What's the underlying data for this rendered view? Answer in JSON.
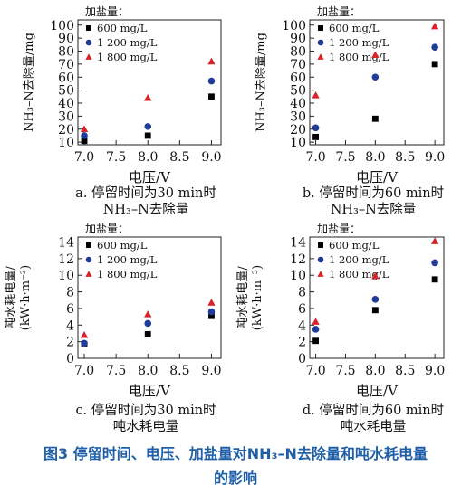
{
  "figure": {
    "number": "图3",
    "title_line1": "停留时间、电压、加盐量对NH₃–N去除量和吨水耗电量",
    "title_line2": "的影响"
  },
  "chart_data": [
    {
      "type": "scatter",
      "xlabel": "电压/V",
      "ylabel": "NH₃–N去除量/mg",
      "legend_title": "加盐量：",
      "caption_line1": "a. 停留时间为30 min时",
      "caption_line2": "NH₃–N去除量",
      "x_ticks": [
        "7.0",
        "7.5",
        "8.0",
        "8.5",
        "9.0"
      ],
      "y_ticks": [
        "10",
        "20",
        "30",
        "40",
        "50",
        "60",
        "70",
        "80",
        "90",
        "100"
      ],
      "xlim": [
        6.9,
        9.15
      ],
      "ylim": [
        8,
        104
      ],
      "series": [
        {
          "name": "600 mg/L",
          "marker": "square",
          "color": "#000000",
          "x": [
            7.0,
            8.0,
            9.0
          ],
          "y": [
            11,
            15,
            45
          ]
        },
        {
          "name": "1 200 mg/L",
          "marker": "circle",
          "color": "#1f3c99",
          "x": [
            7.0,
            8.0,
            9.0
          ],
          "y": [
            15,
            22,
            57
          ]
        },
        {
          "name": "1 800 mg/L",
          "marker": "triangle",
          "color": "#d9232a",
          "x": [
            7.0,
            8.0,
            9.0
          ],
          "y": [
            20,
            44,
            72
          ]
        }
      ]
    },
    {
      "type": "scatter",
      "xlabel": "电压/V",
      "ylabel": "NH₃–N去除量/mg",
      "legend_title": "加盐量：",
      "caption_line1": "b. 停留时间为60 min时",
      "caption_line2": "NH₃–N去除量",
      "x_ticks": [
        "7.0",
        "7.5",
        "8.0",
        "8.5",
        "9.0"
      ],
      "y_ticks": [
        "10",
        "20",
        "30",
        "40",
        "50",
        "60",
        "70",
        "80",
        "90",
        "100"
      ],
      "xlim": [
        6.9,
        9.15
      ],
      "ylim": [
        8,
        104
      ],
      "series": [
        {
          "name": "600 mg/L",
          "marker": "square",
          "color": "#000000",
          "x": [
            7.0,
            8.0,
            9.0
          ],
          "y": [
            14,
            28,
            70
          ]
        },
        {
          "name": "1 200 mg/L",
          "marker": "circle",
          "color": "#1f3c99",
          "x": [
            7.0,
            8.0,
            9.0
          ],
          "y": [
            21,
            60,
            83
          ]
        },
        {
          "name": "1 800 mg/L",
          "marker": "triangle",
          "color": "#d9232a",
          "x": [
            7.0,
            8.0,
            9.0
          ],
          "y": [
            46,
            77,
            99
          ]
        }
      ]
    },
    {
      "type": "scatter",
      "xlabel": "电压/V",
      "ylabel_line1": "吨水耗电量/",
      "ylabel_line2": "(kW·h·m⁻³)",
      "legend_title": "加盐量：",
      "caption_line1": "c. 停留时间为30 min时",
      "caption_line2": "吨水耗电量",
      "x_ticks": [
        "7.0",
        "7.5",
        "8.0",
        "8.5",
        "9.0"
      ],
      "y_ticks": [
        "0",
        "2",
        "4",
        "6",
        "8",
        "10",
        "12",
        "14"
      ],
      "xlim": [
        6.9,
        9.15
      ],
      "ylim": [
        0,
        14.6
      ],
      "series": [
        {
          "name": "600 mg/L",
          "marker": "square",
          "color": "#000000",
          "x": [
            7.0,
            8.0,
            9.0
          ],
          "y": [
            1.7,
            2.9,
            5.1
          ]
        },
        {
          "name": "1 200 mg/L",
          "marker": "circle",
          "color": "#1f3c99",
          "x": [
            7.0,
            8.0,
            9.0
          ],
          "y": [
            1.8,
            4.2,
            5.6
          ]
        },
        {
          "name": "1 800 mg/L",
          "marker": "triangle",
          "color": "#d9232a",
          "x": [
            7.0,
            8.0,
            9.0
          ],
          "y": [
            2.8,
            5.3,
            6.7
          ]
        }
      ]
    },
    {
      "type": "scatter",
      "xlabel": "电压/V",
      "ylabel_line1": "吨水耗电量/",
      "ylabel_line2": "(kW·h·m⁻³)",
      "legend_title": "加盐量：",
      "caption_line1": "d. 停留时间为60 min时",
      "caption_line2": "吨水耗电量",
      "x_ticks": [
        "7.0",
        "7.5",
        "8.0",
        "8.5",
        "9.0"
      ],
      "y_ticks": [
        "0",
        "2",
        "4",
        "6",
        "8",
        "10",
        "12",
        "14"
      ],
      "xlim": [
        6.9,
        9.15
      ],
      "ylim": [
        0,
        14.6
      ],
      "series": [
        {
          "name": "600 mg/L",
          "marker": "square",
          "color": "#000000",
          "x": [
            7.0,
            8.0,
            9.0
          ],
          "y": [
            2.1,
            5.8,
            9.5
          ]
        },
        {
          "name": "1 200 mg/L",
          "marker": "circle",
          "color": "#1f3c99",
          "x": [
            7.0,
            8.0,
            9.0
          ],
          "y": [
            3.5,
            7.1,
            11.5
          ]
        },
        {
          "name": "1 800 mg/L",
          "marker": "triangle",
          "color": "#d9232a",
          "x": [
            7.0,
            8.0,
            9.0
          ],
          "y": [
            4.4,
            9.9,
            14.1
          ]
        }
      ]
    }
  ]
}
